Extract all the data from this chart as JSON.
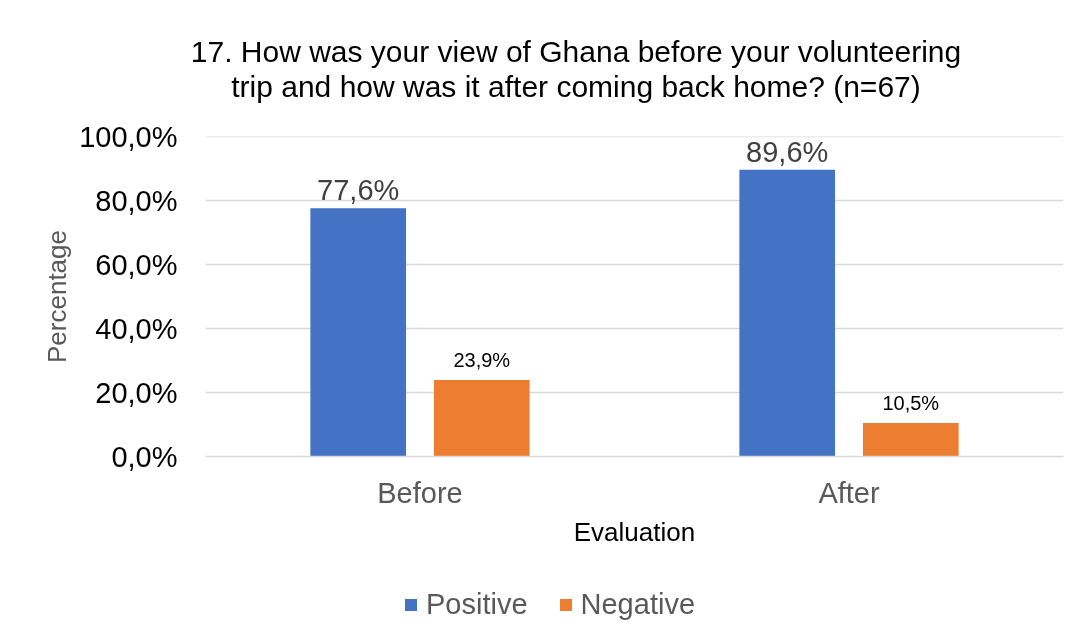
{
  "chart_data": {
    "type": "bar",
    "title": "17. How was your view of Ghana before your volunteering trip and how was it after coming back home? (n=67)",
    "xlabel": "Evaluation",
    "ylabel": "Percentage",
    "categories": [
      "Before",
      "After"
    ],
    "series": [
      {
        "name": "Positive",
        "color": "#4472c4",
        "values": [
          77.6,
          89.6
        ],
        "value_labels": [
          "77,6%",
          "89,6%"
        ]
      },
      {
        "name": "Negative",
        "color": "#ed7d31",
        "values": [
          23.9,
          10.5
        ],
        "value_labels": [
          "23,9%",
          "10,5%"
        ]
      }
    ],
    "ylim": [
      0,
      100
    ],
    "yticks": [
      {
        "value": 0,
        "label": "0,0%"
      },
      {
        "value": 20,
        "label": "20,0%"
      },
      {
        "value": 40,
        "label": "40,0%"
      },
      {
        "value": 60,
        "label": "60,0%"
      },
      {
        "value": 80,
        "label": "80,0%"
      },
      {
        "value": 100,
        "label": "100,0%"
      }
    ],
    "grid": "y",
    "legend": "bottom"
  }
}
